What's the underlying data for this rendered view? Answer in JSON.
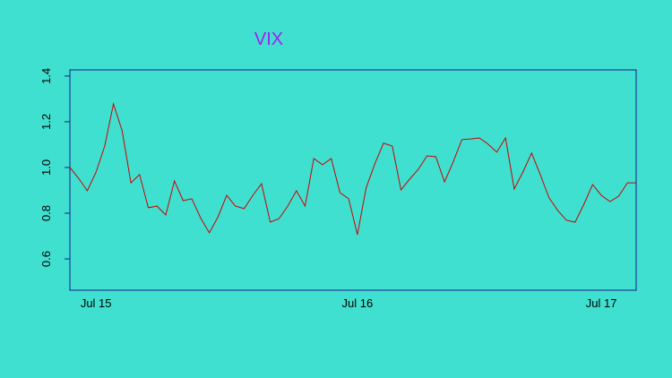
{
  "chart_data": {
    "type": "line",
    "title": "VIX",
    "title_color": "#a020f0",
    "categories": [
      null,
      null,
      null,
      "Jul 15",
      null,
      null,
      null,
      null,
      null,
      null,
      null,
      null,
      null,
      null,
      null,
      null,
      null,
      null,
      null,
      null,
      null,
      null,
      null,
      null,
      null,
      null,
      null,
      null,
      null,
      null,
      null,
      null,
      null,
      "Jul 16",
      null,
      null,
      null,
      null,
      null,
      null,
      null,
      null,
      null,
      null,
      null,
      null,
      null,
      null,
      null,
      null,
      null,
      null,
      null,
      null,
      null,
      null,
      null,
      null,
      null,
      null,
      null,
      "Jul 17",
      null,
      null,
      null,
      null
    ],
    "series": [
      {
        "name": "VIX",
        "color": "#cc0000",
        "values": [
          1.0,
          0.953,
          0.898,
          0.98,
          1.094,
          1.278,
          1.161,
          0.933,
          0.969,
          0.824,
          0.831,
          0.792,
          0.941,
          0.855,
          0.863,
          0.78,
          0.714,
          0.784,
          0.878,
          0.831,
          0.82,
          0.878,
          0.929,
          0.761,
          0.776,
          0.831,
          0.898,
          0.831,
          1.039,
          1.012,
          1.039,
          0.89,
          0.863,
          0.706,
          0.91,
          1.016,
          1.106,
          1.094,
          0.902,
          0.949,
          0.992,
          1.051,
          1.047,
          0.937,
          1.024,
          1.122,
          1.125,
          1.129,
          1.102,
          1.067,
          1.129,
          0.906,
          0.98,
          1.063,
          0.969,
          0.867,
          0.812,
          0.769,
          0.761,
          0.839,
          0.925,
          0.878,
          0.851,
          0.875,
          0.933,
          0.933
        ]
      }
    ],
    "ylim": [
      0.463,
      1.427
    ],
    "yticks": [
      0.6,
      0.8,
      {
        "value": 1,
        "label": "1.0"
      },
      1.2,
      1.4
    ],
    "grid": false
  }
}
